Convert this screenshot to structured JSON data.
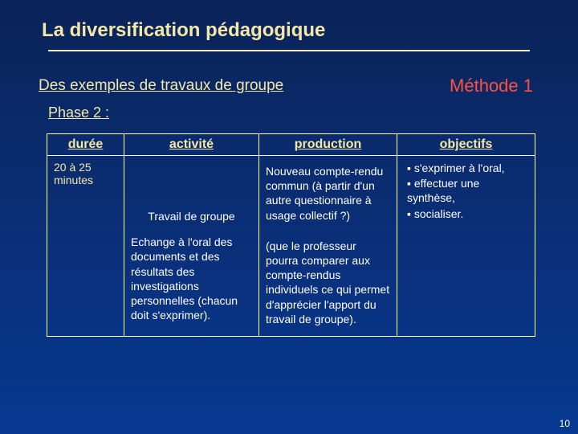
{
  "title": "La diversification pédagogique",
  "subtitle": "Des exemples de travaux de groupe",
  "method": "Méthode 1",
  "phase": "Phase 2 :",
  "table": {
    "headers": {
      "duree": "durée",
      "activite": "activité",
      "production": "production",
      "objectifs": "objectifs"
    },
    "duree": "20 à 25 minutes",
    "activite": {
      "p1": "Travail de groupe",
      "p2": "Echange à l'oral des documents et des résultats des investigations personnelles (chacun doit s'exprimer)."
    },
    "production": {
      "p1": "Nouveau compte-rendu commun (à partir d'un autre questionnaire à usage collectif ?)",
      "p2": "(que le professeur pourra comparer aux compte-rendus individuels ce qui permet d'apprécier l'apport du travail de groupe)."
    },
    "objectifs": {
      "items": [
        "s'exprimer à l'oral,",
        "effectuer une synthèse,",
        "socialiser."
      ]
    }
  },
  "pagenum": "10",
  "colors": {
    "accent": "#f4e8a8",
    "method": "#ff5040",
    "border": "#ffffff"
  }
}
